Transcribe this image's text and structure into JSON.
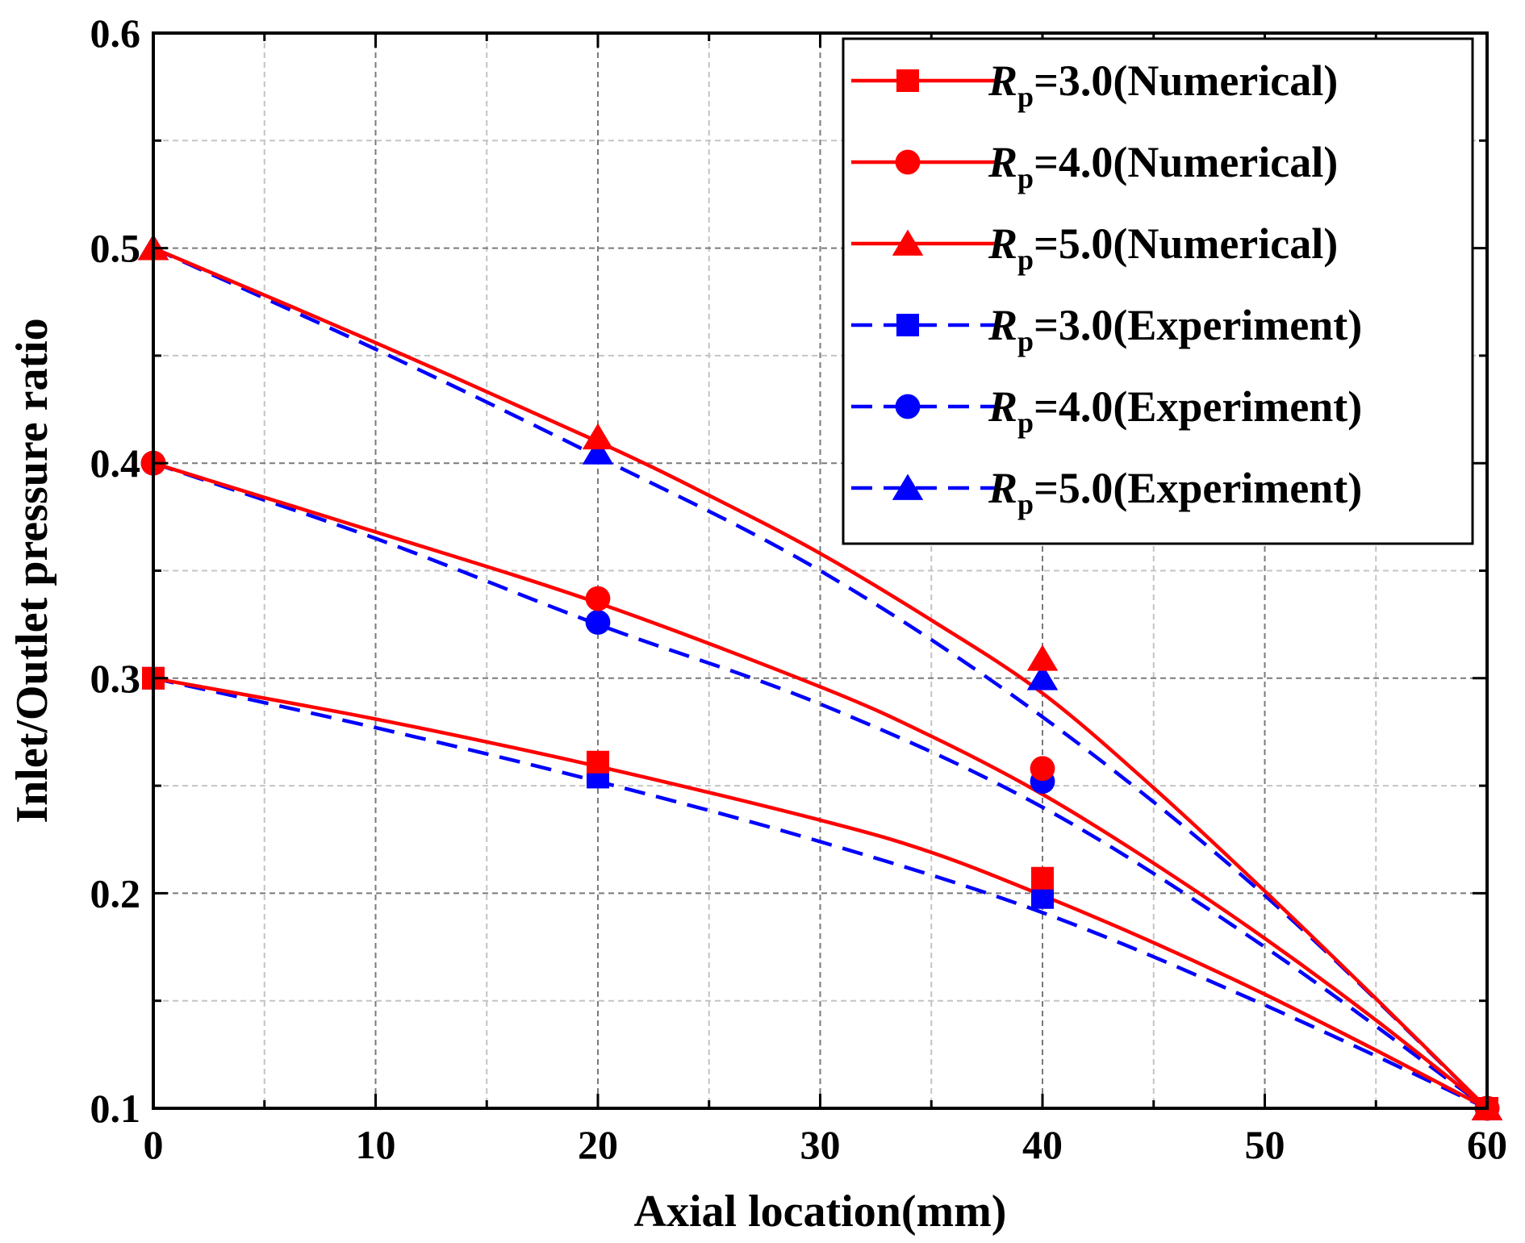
{
  "chart_data": {
    "type": "line",
    "title": "",
    "xlabel": "Axial location(mm)",
    "ylabel": "Inlet/Outlet pressure ratio",
    "xlim": [
      0,
      60
    ],
    "ylim": [
      0.1,
      0.6
    ],
    "xticks": [
      0,
      10,
      20,
      30,
      40,
      50,
      60
    ],
    "xtick_labels": [
      "0",
      "10",
      "20",
      "30",
      "40",
      "50",
      "60"
    ],
    "yticks": [
      0.1,
      0.2,
      0.3,
      0.4,
      0.5,
      0.6
    ],
    "ytick_labels": [
      "0.1",
      "0.2",
      "0.3",
      "0.4",
      "0.5",
      "0.6"
    ],
    "grid": true,
    "legend_position": "top-right",
    "series": [
      {
        "name": "Rp=3.0(Numerical)",
        "legend_italic": "R",
        "legend_sub": "p",
        "legend_rest": "=3.0(Numerical)",
        "color": "#ff0000",
        "style": "solid",
        "marker": "square",
        "curve_x": [
          0,
          10,
          20,
          30,
          35,
          40,
          45,
          50,
          55,
          60
        ],
        "curve_y": [
          0.3,
          0.281,
          0.259,
          0.234,
          0.219,
          0.199,
          0.177,
          0.153,
          0.127,
          0.1
        ],
        "points_x": [
          0,
          20,
          40,
          60
        ],
        "points_y": [
          0.3,
          0.261,
          0.207,
          0.1
        ]
      },
      {
        "name": "Rp=4.0(Numerical)",
        "legend_italic": "R",
        "legend_sub": "p",
        "legend_rest": "=4.0(Numerical)",
        "color": "#ff0000",
        "style": "solid",
        "marker": "circle",
        "curve_x": [
          0,
          10,
          20,
          30,
          35,
          40,
          45,
          50,
          55,
          60
        ],
        "curve_y": [
          0.4,
          0.368,
          0.335,
          0.296,
          0.273,
          0.246,
          0.214,
          0.179,
          0.141,
          0.1
        ],
        "points_x": [
          0,
          20,
          40,
          60
        ],
        "points_y": [
          0.4,
          0.337,
          0.258,
          0.1
        ]
      },
      {
        "name": "Rp=5.0(Numerical)",
        "legend_italic": "R",
        "legend_sub": "p",
        "legend_rest": "=5.0(Numerical)",
        "color": "#ff0000",
        "style": "solid",
        "marker": "triangle",
        "curve_x": [
          0,
          10,
          20,
          25,
          30,
          35,
          40,
          45,
          50,
          55,
          60
        ],
        "curve_y": [
          0.5,
          0.456,
          0.41,
          0.385,
          0.358,
          0.327,
          0.293,
          0.249,
          0.201,
          0.151,
          0.1
        ],
        "points_x": [
          0,
          20,
          40,
          60
        ],
        "points_y": [
          0.5,
          0.412,
          0.309,
          0.1
        ]
      },
      {
        "name": "Rp=3.0(Experiment)",
        "legend_italic": "R",
        "legend_sub": "p",
        "legend_rest": "=3.0(Experiment)",
        "color": "#0000ff",
        "style": "dashed",
        "marker": "square",
        "curve_x": [
          0,
          10,
          20,
          30,
          40,
          50,
          60
        ],
        "curve_y": [
          0.3,
          0.277,
          0.252,
          0.224,
          0.191,
          0.148,
          0.1
        ],
        "points_x": [
          0,
          20,
          40,
          60
        ],
        "points_y": [
          0.3,
          0.254,
          0.198,
          0.1
        ]
      },
      {
        "name": "Rp=4.0(Experiment)",
        "legend_italic": "R",
        "legend_sub": "p",
        "legend_rest": "=4.0(Experiment)",
        "color": "#0000ff",
        "style": "dashed",
        "marker": "circle",
        "curve_x": [
          0,
          10,
          20,
          30,
          40,
          50,
          60
        ],
        "curve_y": [
          0.4,
          0.365,
          0.325,
          0.288,
          0.24,
          0.175,
          0.1
        ],
        "points_x": [
          0,
          20,
          40,
          60
        ],
        "points_y": [
          0.4,
          0.326,
          0.252,
          0.1
        ]
      },
      {
        "name": "Rp=5.0(Experiment)",
        "legend_italic": "R",
        "legend_sub": "p",
        "legend_rest": "=5.0(Experiment)",
        "color": "#0000ff",
        "style": "dashed",
        "marker": "triangle",
        "curve_x": [
          0,
          10,
          20,
          30,
          40,
          50,
          60
        ],
        "curve_y": [
          0.5,
          0.453,
          0.403,
          0.35,
          0.282,
          0.199,
          0.1
        ],
        "points_x": [
          0,
          20,
          40,
          60
        ],
        "points_y": [
          0.5,
          0.405,
          0.3,
          0.1
        ]
      }
    ]
  }
}
